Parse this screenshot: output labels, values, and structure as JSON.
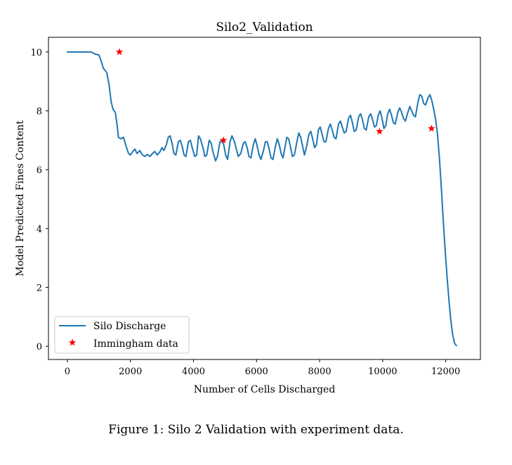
{
  "caption": "Figure 1: Silo 2 Validation with experiment data.",
  "chart_data": {
    "type": "line",
    "title": "Silo2_Validation",
    "xlabel": "Number of Cells Discharged",
    "ylabel": "Model Predicted Fines Content",
    "xlim": [
      -600,
      13100
    ],
    "ylim": [
      -0.45,
      10.5
    ],
    "xticks": [
      0,
      2000,
      4000,
      6000,
      8000,
      10000,
      12000
    ],
    "xtick_labels": [
      "0",
      "2000",
      "4000",
      "6000",
      "8000",
      "10000",
      "12000"
    ],
    "yticks": [
      0,
      2,
      4,
      6,
      8,
      10
    ],
    "ytick_labels": [
      "0",
      "2",
      "4",
      "6",
      "8",
      "10"
    ],
    "grid": false,
    "legend_position": "lower-left",
    "series": [
      {
        "name": "Silo Discharge",
        "kind": "line",
        "color": "#1f77b4",
        "points": [
          [
            0,
            10.0
          ],
          [
            400,
            10.0
          ],
          [
            750,
            10.0
          ],
          [
            880,
            9.93
          ],
          [
            1000,
            9.9
          ],
          [
            1070,
            9.7
          ],
          [
            1140,
            9.45
          ],
          [
            1250,
            9.3
          ],
          [
            1320,
            8.9
          ],
          [
            1390,
            8.3
          ],
          [
            1450,
            8.05
          ],
          [
            1520,
            7.95
          ],
          [
            1580,
            7.5
          ],
          [
            1620,
            7.1
          ],
          [
            1700,
            7.05
          ],
          [
            1780,
            7.1
          ],
          [
            1860,
            6.8
          ],
          [
            1940,
            6.55
          ],
          [
            2000,
            6.5
          ],
          [
            2060,
            6.6
          ],
          [
            2140,
            6.7
          ],
          [
            2210,
            6.55
          ],
          [
            2300,
            6.65
          ],
          [
            2380,
            6.5
          ],
          [
            2460,
            6.45
          ],
          [
            2540,
            6.52
          ],
          [
            2620,
            6.45
          ],
          [
            2700,
            6.55
          ],
          [
            2770,
            6.62
          ],
          [
            2850,
            6.5
          ],
          [
            2930,
            6.6
          ],
          [
            3000,
            6.75
          ],
          [
            3060,
            6.65
          ],
          [
            3140,
            6.85
          ],
          [
            3200,
            7.1
          ],
          [
            3260,
            7.15
          ],
          [
            3320,
            6.9
          ],
          [
            3380,
            6.55
          ],
          [
            3440,
            6.5
          ],
          [
            3520,
            6.95
          ],
          [
            3580,
            7.0
          ],
          [
            3640,
            6.8
          ],
          [
            3700,
            6.5
          ],
          [
            3760,
            6.45
          ],
          [
            3840,
            6.95
          ],
          [
            3900,
            7.0
          ],
          [
            3960,
            6.75
          ],
          [
            4040,
            6.45
          ],
          [
            4100,
            6.5
          ],
          [
            4160,
            7.15
          ],
          [
            4220,
            7.05
          ],
          [
            4300,
            6.75
          ],
          [
            4360,
            6.45
          ],
          [
            4420,
            6.5
          ],
          [
            4500,
            7.0
          ],
          [
            4560,
            6.9
          ],
          [
            4620,
            6.6
          ],
          [
            4700,
            6.3
          ],
          [
            4760,
            6.45
          ],
          [
            4840,
            6.95
          ],
          [
            4900,
            7.0
          ],
          [
            4960,
            6.85
          ],
          [
            5020,
            6.5
          ],
          [
            5080,
            6.35
          ],
          [
            5160,
            6.95
          ],
          [
            5220,
            7.15
          ],
          [
            5300,
            6.95
          ],
          [
            5360,
            6.7
          ],
          [
            5420,
            6.45
          ],
          [
            5500,
            6.55
          ],
          [
            5580,
            6.9
          ],
          [
            5640,
            6.95
          ],
          [
            5700,
            6.75
          ],
          [
            5760,
            6.45
          ],
          [
            5820,
            6.4
          ],
          [
            5900,
            6.85
          ],
          [
            5960,
            7.05
          ],
          [
            6020,
            6.8
          ],
          [
            6080,
            6.5
          ],
          [
            6140,
            6.35
          ],
          [
            6220,
            6.65
          ],
          [
            6280,
            6.95
          ],
          [
            6340,
            6.95
          ],
          [
            6400,
            6.7
          ],
          [
            6460,
            6.4
          ],
          [
            6520,
            6.35
          ],
          [
            6600,
            6.8
          ],
          [
            6660,
            7.05
          ],
          [
            6720,
            6.85
          ],
          [
            6780,
            6.55
          ],
          [
            6840,
            6.4
          ],
          [
            6900,
            6.75
          ],
          [
            6960,
            7.1
          ],
          [
            7020,
            7.05
          ],
          [
            7080,
            6.75
          ],
          [
            7140,
            6.45
          ],
          [
            7200,
            6.5
          ],
          [
            7280,
            6.95
          ],
          [
            7340,
            7.25
          ],
          [
            7400,
            7.1
          ],
          [
            7460,
            6.8
          ],
          [
            7520,
            6.5
          ],
          [
            7580,
            6.75
          ],
          [
            7660,
            7.2
          ],
          [
            7720,
            7.3
          ],
          [
            7780,
            7.05
          ],
          [
            7840,
            6.75
          ],
          [
            7900,
            6.85
          ],
          [
            7960,
            7.35
          ],
          [
            8020,
            7.45
          ],
          [
            8080,
            7.2
          ],
          [
            8140,
            6.95
          ],
          [
            8200,
            6.95
          ],
          [
            8280,
            7.4
          ],
          [
            8340,
            7.55
          ],
          [
            8400,
            7.35
          ],
          [
            8460,
            7.1
          ],
          [
            8520,
            7.05
          ],
          [
            8600,
            7.55
          ],
          [
            8660,
            7.65
          ],
          [
            8720,
            7.45
          ],
          [
            8780,
            7.25
          ],
          [
            8840,
            7.3
          ],
          [
            8920,
            7.75
          ],
          [
            8980,
            7.85
          ],
          [
            9040,
            7.6
          ],
          [
            9100,
            7.3
          ],
          [
            9160,
            7.35
          ],
          [
            9240,
            7.8
          ],
          [
            9300,
            7.9
          ],
          [
            9360,
            7.7
          ],
          [
            9420,
            7.4
          ],
          [
            9480,
            7.35
          ],
          [
            9560,
            7.8
          ],
          [
            9620,
            7.9
          ],
          [
            9680,
            7.7
          ],
          [
            9740,
            7.45
          ],
          [
            9800,
            7.5
          ],
          [
            9860,
            7.85
          ],
          [
            9920,
            8.0
          ],
          [
            9980,
            7.75
          ],
          [
            10040,
            7.4
          ],
          [
            10100,
            7.5
          ],
          [
            10160,
            7.9
          ],
          [
            10220,
            8.05
          ],
          [
            10280,
            7.85
          ],
          [
            10340,
            7.6
          ],
          [
            10400,
            7.55
          ],
          [
            10480,
            7.95
          ],
          [
            10540,
            8.1
          ],
          [
            10600,
            7.95
          ],
          [
            10660,
            7.75
          ],
          [
            10720,
            7.65
          ],
          [
            10800,
            7.95
          ],
          [
            10860,
            8.15
          ],
          [
            10920,
            8.0
          ],
          [
            10980,
            7.85
          ],
          [
            11040,
            7.8
          ],
          [
            11120,
            8.3
          ],
          [
            11180,
            8.55
          ],
          [
            11240,
            8.5
          ],
          [
            11300,
            8.25
          ],
          [
            11360,
            8.2
          ],
          [
            11440,
            8.45
          ],
          [
            11500,
            8.55
          ],
          [
            11560,
            8.35
          ],
          [
            11620,
            8.05
          ],
          [
            11680,
            7.7
          ],
          [
            11740,
            7.2
          ],
          [
            11800,
            6.4
          ],
          [
            11860,
            5.4
          ],
          [
            11920,
            4.3
          ],
          [
            11980,
            3.3
          ],
          [
            12040,
            2.4
          ],
          [
            12100,
            1.6
          ],
          [
            12160,
            0.9
          ],
          [
            12220,
            0.4
          ],
          [
            12280,
            0.1
          ],
          [
            12340,
            0.02
          ]
        ]
      },
      {
        "name": "Immingham data",
        "kind": "scatter",
        "marker": "star",
        "color": "#ff0000",
        "points": [
          [
            1650,
            10.0
          ],
          [
            4950,
            7.0
          ],
          [
            9900,
            7.3
          ],
          [
            11550,
            7.4
          ]
        ]
      }
    ]
  }
}
